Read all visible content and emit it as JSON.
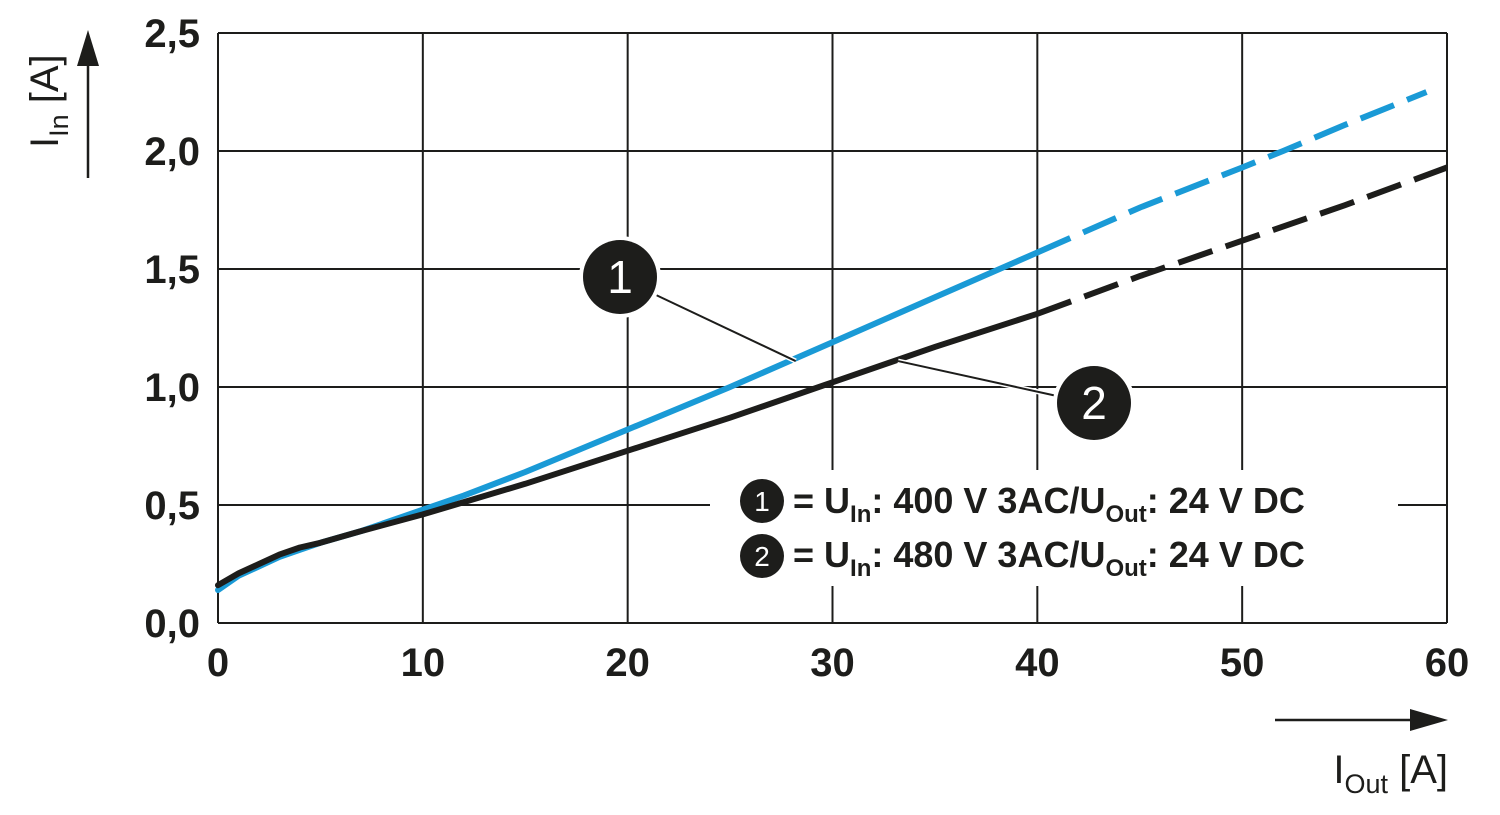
{
  "chart_data": {
    "type": "line",
    "xlabel": {
      "main": "I",
      "sub": "Out",
      "unit": " [A]"
    },
    "ylabel": {
      "main": "I",
      "sub": "In",
      "unit": " [A]"
    },
    "xlim": [
      0,
      60
    ],
    "ylim": [
      0,
      2.5
    ],
    "x_ticks": [
      "0",
      "10",
      "20",
      "30",
      "40",
      "50",
      "60"
    ],
    "y_ticks": [
      "0,0",
      "0,5",
      "1,0",
      "1,5",
      "2,0",
      "2,5"
    ],
    "grid": true,
    "series": [
      {
        "name": "1",
        "color": "#1a9ad6",
        "solid": [
          [
            0,
            0.14
          ],
          [
            1,
            0.2
          ],
          [
            2,
            0.24
          ],
          [
            3,
            0.28
          ],
          [
            4,
            0.31
          ],
          [
            5,
            0.34
          ],
          [
            7,
            0.39
          ],
          [
            8,
            0.42
          ],
          [
            10,
            0.48
          ],
          [
            12,
            0.54
          ],
          [
            15,
            0.64
          ],
          [
            20,
            0.82
          ],
          [
            25,
            1.0
          ],
          [
            30,
            1.19
          ],
          [
            35,
            1.38
          ],
          [
            40,
            1.57
          ]
        ],
        "dashed": [
          [
            40,
            1.57
          ],
          [
            45,
            1.76
          ],
          [
            50,
            1.93
          ],
          [
            52,
            2.0
          ],
          [
            55,
            2.11
          ],
          [
            59,
            2.25
          ]
        ]
      },
      {
        "name": "2",
        "color": "#1d1d1b",
        "solid": [
          [
            0,
            0.16
          ],
          [
            1,
            0.21
          ],
          [
            2,
            0.25
          ],
          [
            3,
            0.29
          ],
          [
            4,
            0.32
          ],
          [
            5,
            0.34
          ],
          [
            7,
            0.39
          ],
          [
            10,
            0.46
          ],
          [
            15,
            0.59
          ],
          [
            20,
            0.73
          ],
          [
            25,
            0.87
          ],
          [
            30,
            1.02
          ],
          [
            35,
            1.17
          ],
          [
            40,
            1.31
          ]
        ],
        "dashed": [
          [
            40,
            1.31
          ],
          [
            45,
            1.47
          ],
          [
            50,
            1.62
          ],
          [
            55,
            1.77
          ],
          [
            60,
            1.93
          ]
        ]
      }
    ],
    "annotations": [
      {
        "label": "1",
        "target": [
          28.2,
          1.11
        ]
      },
      {
        "label": "2",
        "target": [
          33.2,
          1.11
        ]
      }
    ],
    "legend": {
      "placement": "bottom-right",
      "entries": [
        {
          "num": "1",
          "eq": "= U",
          "sub1": "In",
          "mid": ": 400 V 3AC/U",
          "sub2": "Out",
          "tail": ": 24 V DC"
        },
        {
          "num": "2",
          "eq": "= U",
          "sub1": "In",
          "mid": ": 480 V 3AC/U",
          "sub2": "Out",
          "tail": ": 24 V DC"
        }
      ]
    }
  }
}
